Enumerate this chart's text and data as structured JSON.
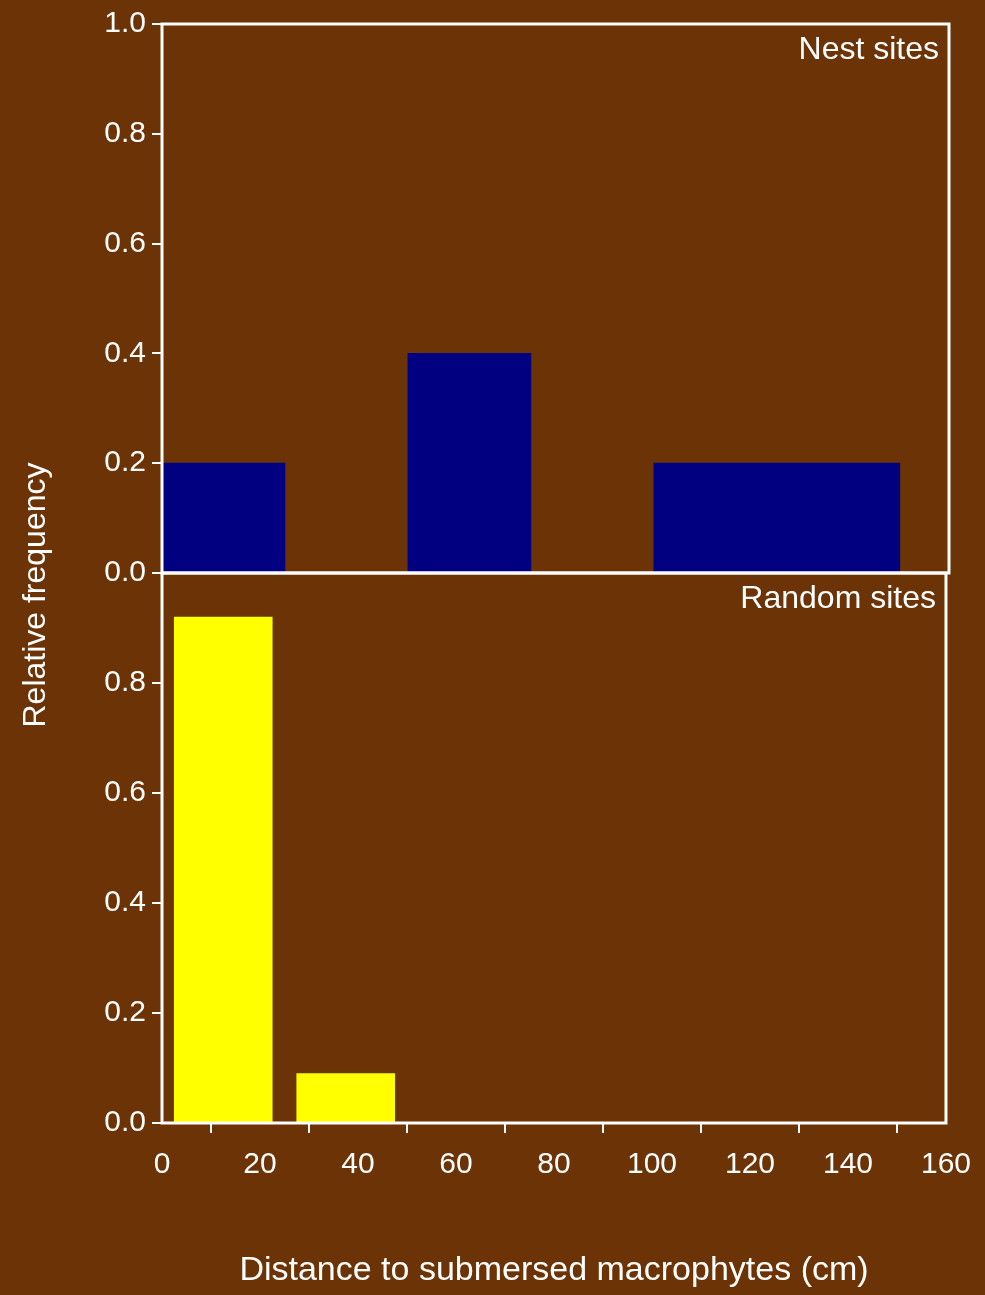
{
  "chart_data": [
    {
      "type": "histogram",
      "title": "Nest sites",
      "ylabel": "Relative frequency",
      "bins": [
        0,
        25,
        50,
        75,
        100,
        125,
        150
      ],
      "values": [
        0.2,
        0,
        0.4,
        0,
        0.2,
        0.2
      ],
      "color": "#000080",
      "xlim": [
        0,
        160
      ],
      "ylim": [
        0,
        1.0
      ],
      "yticks": [
        {
          "value": 0,
          "label": "0.0"
        },
        {
          "value": 0.2,
          "label": "0.2"
        },
        {
          "value": 0.4,
          "label": "0.4"
        },
        {
          "value": 0.6,
          "label": "0.6"
        },
        {
          "value": 0.8,
          "label": "0.8"
        },
        {
          "value": 1.0,
          "label": "1.0"
        }
      ],
      "tick_labels": "y",
      "grid": false,
      "legend": false
    },
    {
      "type": "histogram",
      "title": "Random sites",
      "xlabel": "Distance to submersed macrophytes (cm)",
      "bins": [
        0,
        25,
        50
      ],
      "values": [
        0.92,
        0.09
      ],
      "color": "#ffff00",
      "xlim": [
        0,
        160
      ],
      "xticks": [
        0,
        20,
        40,
        60,
        80,
        100,
        120,
        140,
        160
      ],
      "ylim": [
        0,
        1.0
      ],
      "yticks": [
        {
          "value": 0,
          "label": "0.0"
        },
        {
          "value": 0.2,
          "label": "0.2"
        },
        {
          "value": 0.4,
          "label": "0.4"
        },
        {
          "value": 0.6,
          "label": "0.6"
        },
        {
          "value": 0.8,
          "label": "0.8"
        }
      ],
      "grid": false,
      "legend": false
    }
  ]
}
